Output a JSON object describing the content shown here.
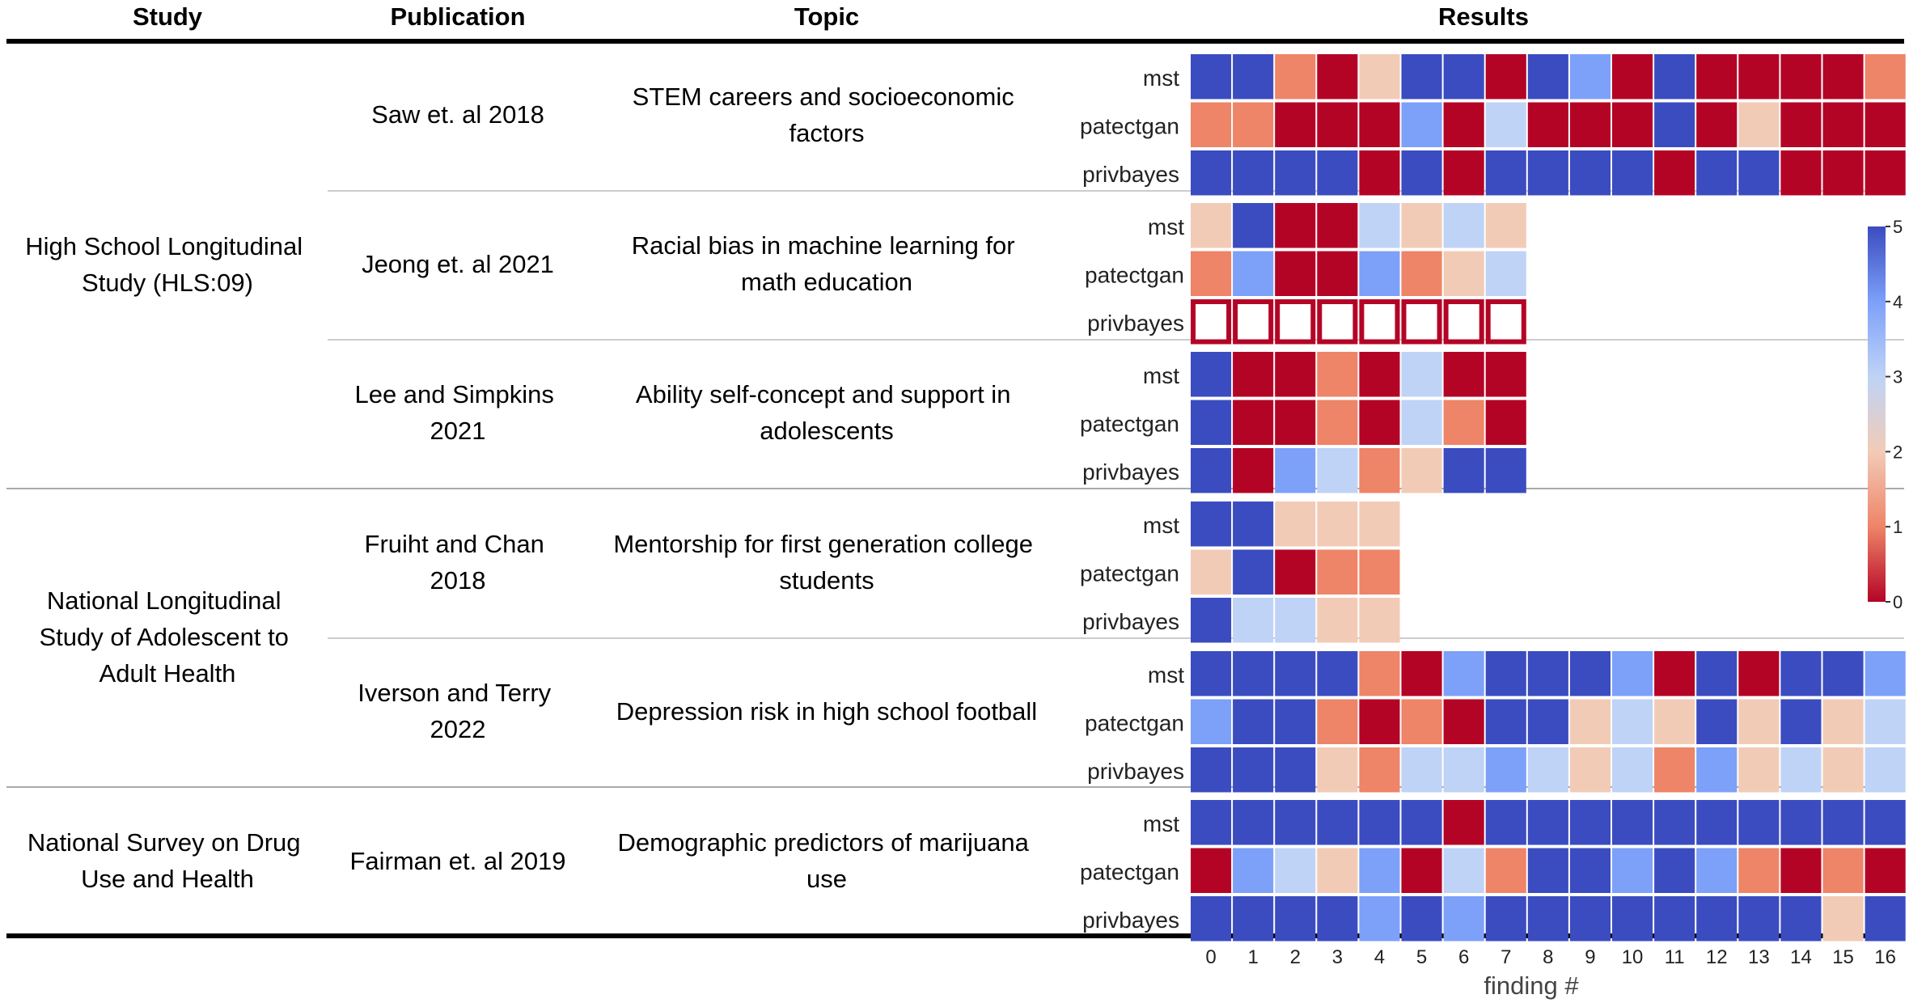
{
  "header": {
    "study": "Study",
    "publication": "Publication",
    "topic": "Topic",
    "results": "Results"
  },
  "colorbar": {
    "ticks": [
      "5",
      "4",
      "3",
      "2",
      "1",
      "0"
    ],
    "low_color": "#b40426",
    "mid_color": "#dddddd",
    "high_color": "#3b4cc0"
  },
  "xlabel": "finding #",
  "colors": {
    "0": "#b40426",
    "1": "#ee8468",
    "2": "#f2cbb7",
    "3": "#bfd3f6",
    "4": "#7da0f9",
    "5": "#3b4cc0",
    "empty_border": "#b40426"
  },
  "chart_data": {
    "type": "heatmap",
    "x": [
      0,
      1,
      2,
      3,
      4,
      5,
      6,
      7,
      8,
      9,
      10,
      11,
      12,
      13,
      14,
      15,
      16
    ],
    "xlabel": "finding #",
    "value_range": [
      0,
      5
    ],
    "rows": [
      "mst",
      "patectgan",
      "privbayes"
    ],
    "groups": [
      {
        "study": "High School Longitudinal Study (HLS:09)",
        "studies": [
          {
            "publication": "Saw et. al 2018",
            "topic": "STEM careers and socioeconomic factors",
            "series": [
              {
                "name": "mst",
                "values": [
                  5,
                  5,
                  1,
                  0,
                  2,
                  5,
                  5,
                  0,
                  5,
                  4,
                  0,
                  5,
                  0,
                  0,
                  0,
                  0,
                  1
                ]
              },
              {
                "name": "patectgan",
                "values": [
                  1,
                  1,
                  0,
                  0,
                  0,
                  4,
                  0,
                  3,
                  0,
                  0,
                  0,
                  5,
                  0,
                  2,
                  0,
                  0,
                  0
                ]
              },
              {
                "name": "privbayes",
                "values": [
                  5,
                  5,
                  5,
                  5,
                  0,
                  5,
                  0,
                  5,
                  5,
                  5,
                  5,
                  0,
                  5,
                  5,
                  0,
                  0,
                  0
                ]
              }
            ]
          },
          {
            "publication": "Jeong et. al 2021",
            "topic": "Racial bias in machine learning for math education",
            "series": [
              {
                "name": "mst",
                "values": [
                  2,
                  5,
                  0,
                  0,
                  3,
                  2,
                  3,
                  2
                ]
              },
              {
                "name": "patectgan",
                "values": [
                  1,
                  4,
                  0,
                  0,
                  4,
                  1,
                  2,
                  3
                ]
              },
              {
                "name": "privbayes",
                "values": [
                  null,
                  null,
                  null,
                  null,
                  null,
                  null,
                  null,
                  null
                ]
              }
            ]
          },
          {
            "publication": "Lee and Simpkins 2021",
            "topic": "Ability self-concept and support in adolescents",
            "series": [
              {
                "name": "mst",
                "values": [
                  5,
                  0,
                  0,
                  1,
                  0,
                  3,
                  0,
                  0
                ]
              },
              {
                "name": "patectgan",
                "values": [
                  5,
                  0,
                  0,
                  1,
                  0,
                  3,
                  1,
                  0
                ]
              },
              {
                "name": "privbayes",
                "values": [
                  5,
                  0,
                  4,
                  3,
                  1,
                  2,
                  5,
                  5
                ]
              }
            ]
          }
        ]
      },
      {
        "study": "National Longitudinal Study of Adolescent to Adult Health",
        "studies": [
          {
            "publication": "Fruiht and Chan 2018",
            "topic": "Mentorship for first generation college students",
            "series": [
              {
                "name": "mst",
                "values": [
                  5,
                  5,
                  2,
                  2,
                  2
                ]
              },
              {
                "name": "patectgan",
                "values": [
                  2,
                  5,
                  0,
                  1,
                  1
                ]
              },
              {
                "name": "privbayes",
                "values": [
                  5,
                  3,
                  3,
                  2,
                  2
                ]
              }
            ]
          },
          {
            "publication": "Iverson and Terry 2022",
            "topic": "Depression risk in high school football",
            "series": [
              {
                "name": "mst",
                "values": [
                  5,
                  5,
                  5,
                  5,
                  1,
                  0,
                  4,
                  5,
                  5,
                  5,
                  4,
                  0,
                  5,
                  0,
                  5,
                  5,
                  4
                ]
              },
              {
                "name": "patectgan",
                "values": [
                  4,
                  5,
                  5,
                  1,
                  0,
                  1,
                  0,
                  5,
                  5,
                  2,
                  3,
                  2,
                  5,
                  2,
                  5,
                  2,
                  3
                ]
              },
              {
                "name": "privbayes",
                "values": [
                  5,
                  5,
                  5,
                  2,
                  1,
                  3,
                  3,
                  4,
                  3,
                  2,
                  3,
                  1,
                  4,
                  2,
                  3,
                  2,
                  3
                ]
              }
            ]
          }
        ]
      },
      {
        "study": "National Survey on Drug Use and Health",
        "studies": [
          {
            "publication": "Fairman et. al 2019",
            "topic": "Demographic predictors of marijuana use",
            "series": [
              {
                "name": "mst",
                "values": [
                  5,
                  5,
                  5,
                  5,
                  5,
                  5,
                  0,
                  5,
                  5,
                  5,
                  5,
                  5,
                  5,
                  5,
                  5,
                  5,
                  5
                ]
              },
              {
                "name": "patectgan",
                "values": [
                  0,
                  4,
                  3,
                  2,
                  4,
                  0,
                  3,
                  1,
                  5,
                  5,
                  4,
                  5,
                  4,
                  1,
                  0,
                  1,
                  0
                ]
              },
              {
                "name": "privbayes",
                "values": [
                  5,
                  5,
                  5,
                  5,
                  4,
                  5,
                  4,
                  5,
                  5,
                  5,
                  5,
                  5,
                  5,
                  5,
                  5,
                  2,
                  5
                ]
              }
            ]
          }
        ]
      }
    ]
  }
}
